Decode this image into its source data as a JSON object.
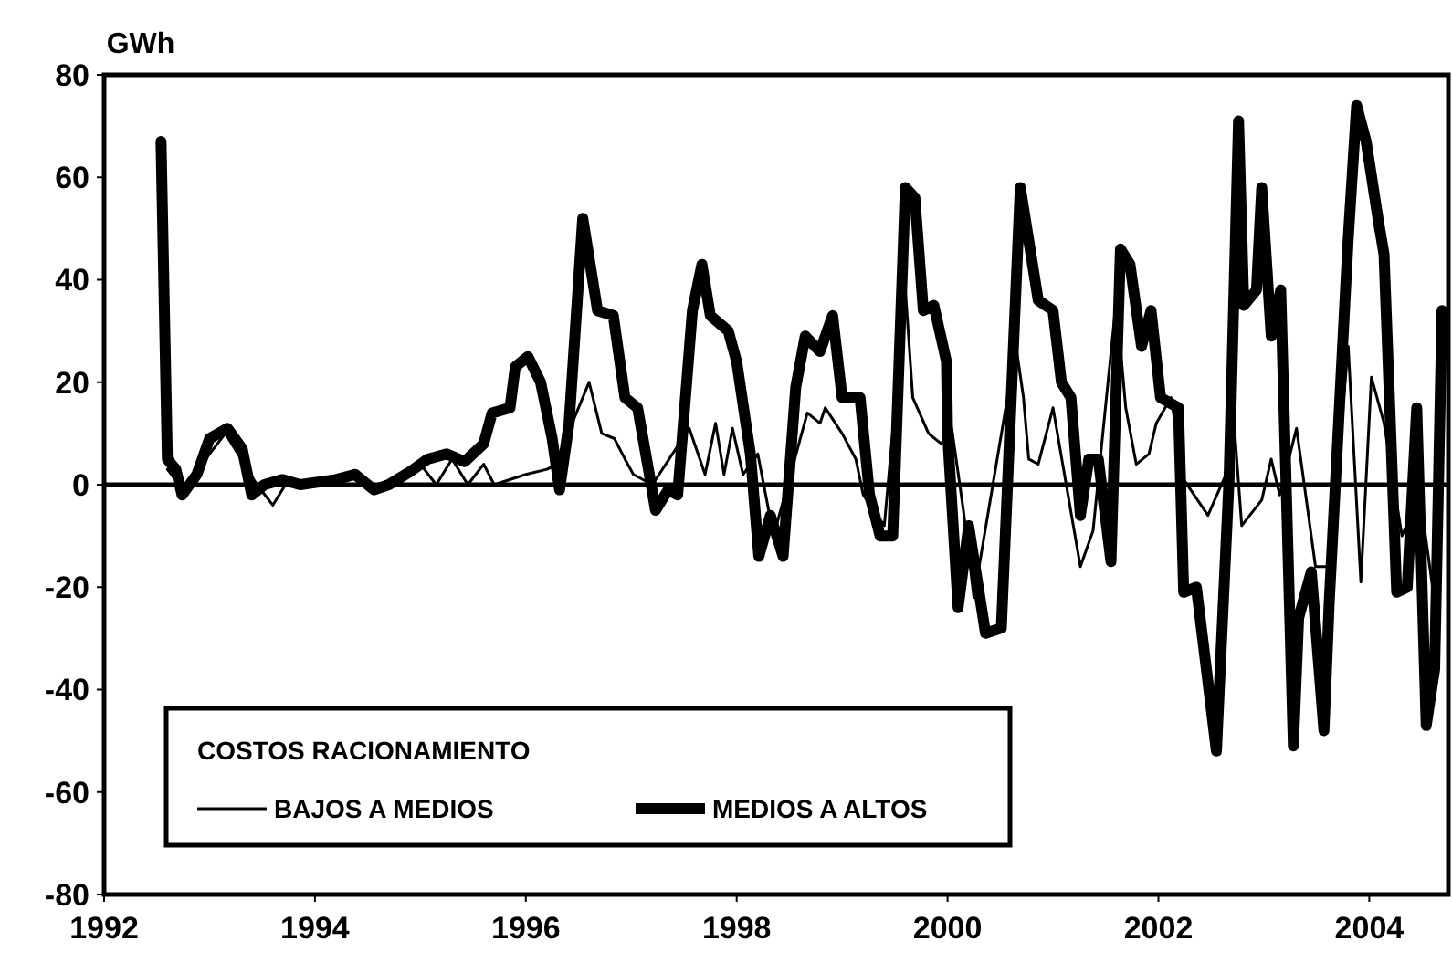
{
  "chart_data": {
    "type": "line",
    "ylabel": "GWh",
    "legend_title": "COSTOS RACIONAMIENTO",
    "legend": "bottom left",
    "grid": false,
    "line_style": "solid",
    "xlim": [
      1992,
      2004.75
    ],
    "xticks": [
      1992,
      1994,
      1996,
      1998,
      2000,
      2002,
      2004
    ],
    "ylim": [
      -80,
      80
    ],
    "yticks": [
      -80,
      -60,
      -40,
      -20,
      0,
      20,
      40,
      60,
      80
    ],
    "ref_lines": [
      {
        "axis": "y",
        "value": 0,
        "color": "#000000"
      }
    ],
    "series": [
      {
        "name": "BAJOS A MEDIOS",
        "color": "#000000",
        "x": [
          1992.6,
          1992.75,
          1993.0,
          1993.15,
          1993.3,
          1993.45,
          1993.6,
          1993.75,
          1994.0,
          1994.3,
          1994.6,
          1994.8,
          1995.0,
          1995.15,
          1995.3,
          1995.45,
          1995.6,
          1995.7,
          1996.0,
          1996.2,
          1996.3,
          1996.4,
          1996.6,
          1996.72,
          1996.84,
          1996.94,
          1997.02,
          1997.2,
          1997.55,
          1997.7,
          1997.8,
          1997.88,
          1997.96,
          1998.06,
          1998.2,
          1998.35,
          1998.67,
          1998.79,
          1998.84,
          1999.0,
          1999.13,
          1999.2,
          1999.4,
          1999.6,
          1999.67,
          1999.82,
          1999.94,
          2000.04,
          2000.15,
          2000.25,
          2000.65,
          2000.72,
          2000.77,
          2000.86,
          2001.0,
          2001.26,
          2001.38,
          2001.6,
          2001.69,
          2001.79,
          2001.91,
          2001.98,
          2002.12,
          2002.24,
          2002.47,
          2002.64,
          2002.7,
          2002.79,
          2002.98,
          2003.07,
          2003.15,
          2003.31,
          2003.49,
          2003.62,
          2003.8,
          2003.92,
          2004.02,
          2004.14,
          2004.31,
          2004.48,
          2004.6
        ],
        "values": [
          3,
          -1,
          6,
          10,
          5,
          0,
          -4,
          1,
          0,
          2,
          -1,
          1,
          4,
          0,
          5,
          0,
          4,
          0,
          2,
          3,
          4,
          10,
          20,
          10,
          9,
          5,
          2,
          0,
          11,
          2,
          12,
          2,
          11,
          2,
          6,
          -10,
          14,
          12,
          15,
          10,
          5,
          -2,
          -8,
          38,
          17,
          10,
          8,
          11,
          -5,
          -22,
          27,
          17,
          5,
          4,
          15,
          -16,
          -9,
          36,
          15,
          4,
          6,
          12,
          17,
          1,
          -6,
          2,
          17,
          -8,
          -3,
          5,
          -2,
          11,
          -16,
          -16,
          27,
          -19,
          21,
          12,
          -10,
          -2,
          -20
        ]
      },
      {
        "name": "MEDIOS A ALTOS",
        "color": "#000000",
        "x": [
          1992.54,
          1992.6,
          1992.68,
          1992.74,
          1992.88,
          1993.0,
          1993.17,
          1993.31,
          1993.4,
          1993.52,
          1993.69,
          1993.86,
          1994.2,
          1994.38,
          1994.56,
          1994.7,
          1994.9,
          1995.07,
          1995.25,
          1995.42,
          1995.6,
          1995.68,
          1995.85,
          1995.9,
          1996.02,
          1996.14,
          1996.25,
          1996.32,
          1996.41,
          1996.54,
          1996.68,
          1996.83,
          1996.94,
          1997.06,
          1997.18,
          1997.23,
          1997.35,
          1997.44,
          1997.58,
          1997.67,
          1997.75,
          1997.92,
          1998.0,
          1998.13,
          1998.21,
          1998.32,
          1998.44,
          1998.56,
          1998.65,
          1998.79,
          1998.91,
          1999.0,
          1999.17,
          1999.26,
          1999.36,
          1999.48,
          1999.6,
          1999.69,
          1999.77,
          1999.87,
          1999.99,
          2000.0,
          2000.1,
          2000.2,
          2000.36,
          2000.51,
          2000.69,
          2000.86,
          2001.0,
          2001.08,
          2001.17,
          2001.26,
          2001.34,
          2001.43,
          2001.55,
          2001.64,
          2001.73,
          2001.84,
          2001.93,
          2002.02,
          2002.19,
          2002.24,
          2002.36,
          2002.55,
          2002.67,
          2002.76,
          2002.81,
          2002.93,
          2002.98,
          2003.07,
          2003.16,
          2003.28,
          2003.33,
          2003.45,
          2003.57,
          2003.62,
          2003.8,
          2003.88,
          2003.97,
          2004.09,
          2004.14,
          2004.26,
          2004.36,
          2004.45,
          2004.54,
          2004.62,
          2004.69
        ],
        "values": [
          67,
          5,
          3,
          -2,
          2,
          9,
          11,
          7,
          -2,
          0,
          1,
          0,
          1,
          2,
          -1,
          0,
          2.5,
          5,
          6,
          4.5,
          8,
          14,
          15,
          23,
          25,
          20,
          9,
          -1,
          12,
          52,
          34,
          33,
          17,
          15,
          1,
          -5,
          -1,
          -2,
          34,
          43,
          33,
          30,
          24,
          6,
          -14,
          -6,
          -14,
          19,
          29,
          26,
          33,
          17,
          17,
          -2,
          -10,
          -10,
          58,
          56,
          34,
          35,
          24,
          10,
          -24,
          -8,
          -29,
          -28,
          58,
          36,
          34,
          20,
          17,
          -6,
          5,
          5,
          -15,
          46,
          43,
          27,
          34,
          17,
          15,
          -21,
          -20,
          -52,
          1,
          71,
          35,
          38,
          58,
          29,
          38,
          -51,
          -26,
          -17,
          -48,
          -23,
          48,
          74,
          67,
          51,
          45,
          -21,
          -20,
          15,
          -47,
          -36,
          34
        ]
      }
    ]
  }
}
